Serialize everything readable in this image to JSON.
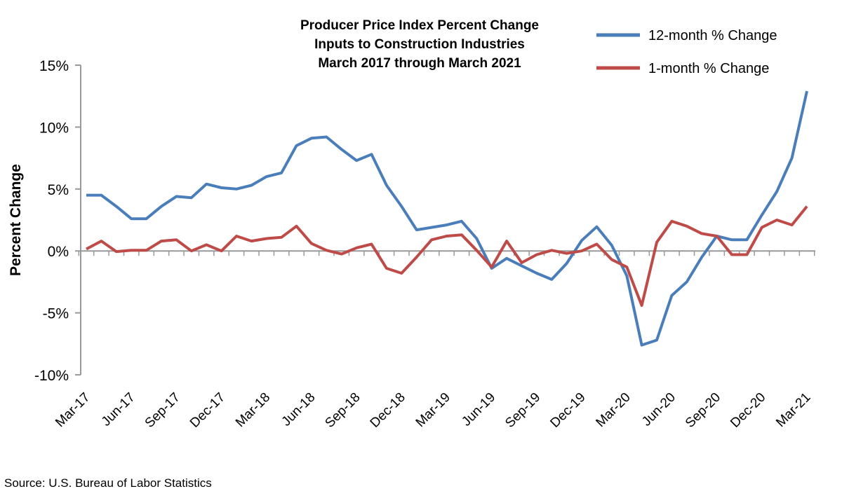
{
  "chart_data": {
    "type": "line",
    "title": [
      "Producer Price Index Percent Change",
      "Inputs to Construction Industries",
      "March 2017 through March 2021"
    ],
    "ylabel": "Percent Change",
    "xlabel": "",
    "ylim": [
      -10,
      15
    ],
    "yticks": [
      -10,
      -5,
      0,
      5,
      10,
      15
    ],
    "ytick_labels": [
      "-10%",
      "-5%",
      "0%",
      "5%",
      "10%",
      "15%"
    ],
    "x": [
      "Mar-17",
      "Apr-17",
      "May-17",
      "Jun-17",
      "Jul-17",
      "Aug-17",
      "Sep-17",
      "Oct-17",
      "Nov-17",
      "Dec-17",
      "Jan-18",
      "Feb-18",
      "Mar-18",
      "Apr-18",
      "May-18",
      "Jun-18",
      "Jul-18",
      "Aug-18",
      "Sep-18",
      "Oct-18",
      "Nov-18",
      "Dec-18",
      "Jan-19",
      "Feb-19",
      "Mar-19",
      "Apr-19",
      "May-19",
      "Jun-19",
      "Jul-19",
      "Aug-19",
      "Sep-19",
      "Oct-19",
      "Nov-19",
      "Dec-19",
      "Jan-20",
      "Feb-20",
      "Mar-20",
      "Apr-20",
      "May-20",
      "Jun-20",
      "Jul-20",
      "Aug-20",
      "Sep-20",
      "Oct-20",
      "Nov-20",
      "Dec-20",
      "Jan-21",
      "Feb-21",
      "Mar-21"
    ],
    "xtick_labels": [
      "Mar-17",
      "Jun-17",
      "Sep-17",
      "Dec-17",
      "Mar-18",
      "Jun-18",
      "Sep-18",
      "Dec-18",
      "Mar-19",
      "Jun-19",
      "Sep-19",
      "Dec-19",
      "Mar-20",
      "Jun-20",
      "Sep-20",
      "Dec-20",
      "Mar-21"
    ],
    "grid": false,
    "legend_position": "top-right",
    "series": [
      {
        "name": "12-month % Change",
        "color": "#4a7ebb",
        "values": [
          4.5,
          4.5,
          3.6,
          2.6,
          2.6,
          3.6,
          4.4,
          4.3,
          5.4,
          5.1,
          5.0,
          5.3,
          6.0,
          6.3,
          8.5,
          9.1,
          9.2,
          8.2,
          7.3,
          7.8,
          5.3,
          3.6,
          1.7,
          1.9,
          2.1,
          2.4,
          1.0,
          -1.4,
          -0.6,
          -1.2,
          -1.8,
          -2.3,
          -1.0,
          0.85,
          1.95,
          0.45,
          -2.0,
          -7.6,
          -7.2,
          -3.6,
          -2.5,
          -0.5,
          1.2,
          0.9,
          0.9,
          2.9,
          4.8,
          7.5,
          12.9
        ]
      },
      {
        "name": "1-month % Change",
        "color": "#be4b48",
        "values": [
          0.15,
          0.8,
          -0.05,
          0.05,
          0.05,
          0.8,
          0.9,
          0.0,
          0.5,
          0.0,
          1.2,
          0.8,
          1.0,
          1.1,
          2.0,
          0.6,
          0.05,
          -0.25,
          0.25,
          0.55,
          -1.4,
          -1.8,
          -0.5,
          0.9,
          1.2,
          1.3,
          0.05,
          -1.3,
          0.8,
          -0.95,
          -0.3,
          0.05,
          -0.2,
          0.0,
          0.55,
          -0.7,
          -1.3,
          -4.4,
          0.7,
          2.4,
          2.0,
          1.4,
          1.2,
          -0.3,
          -0.3,
          1.9,
          2.5,
          2.1,
          3.6
        ]
      }
    ]
  },
  "source": "Source: U.S. Bureau of Labor Statistics"
}
